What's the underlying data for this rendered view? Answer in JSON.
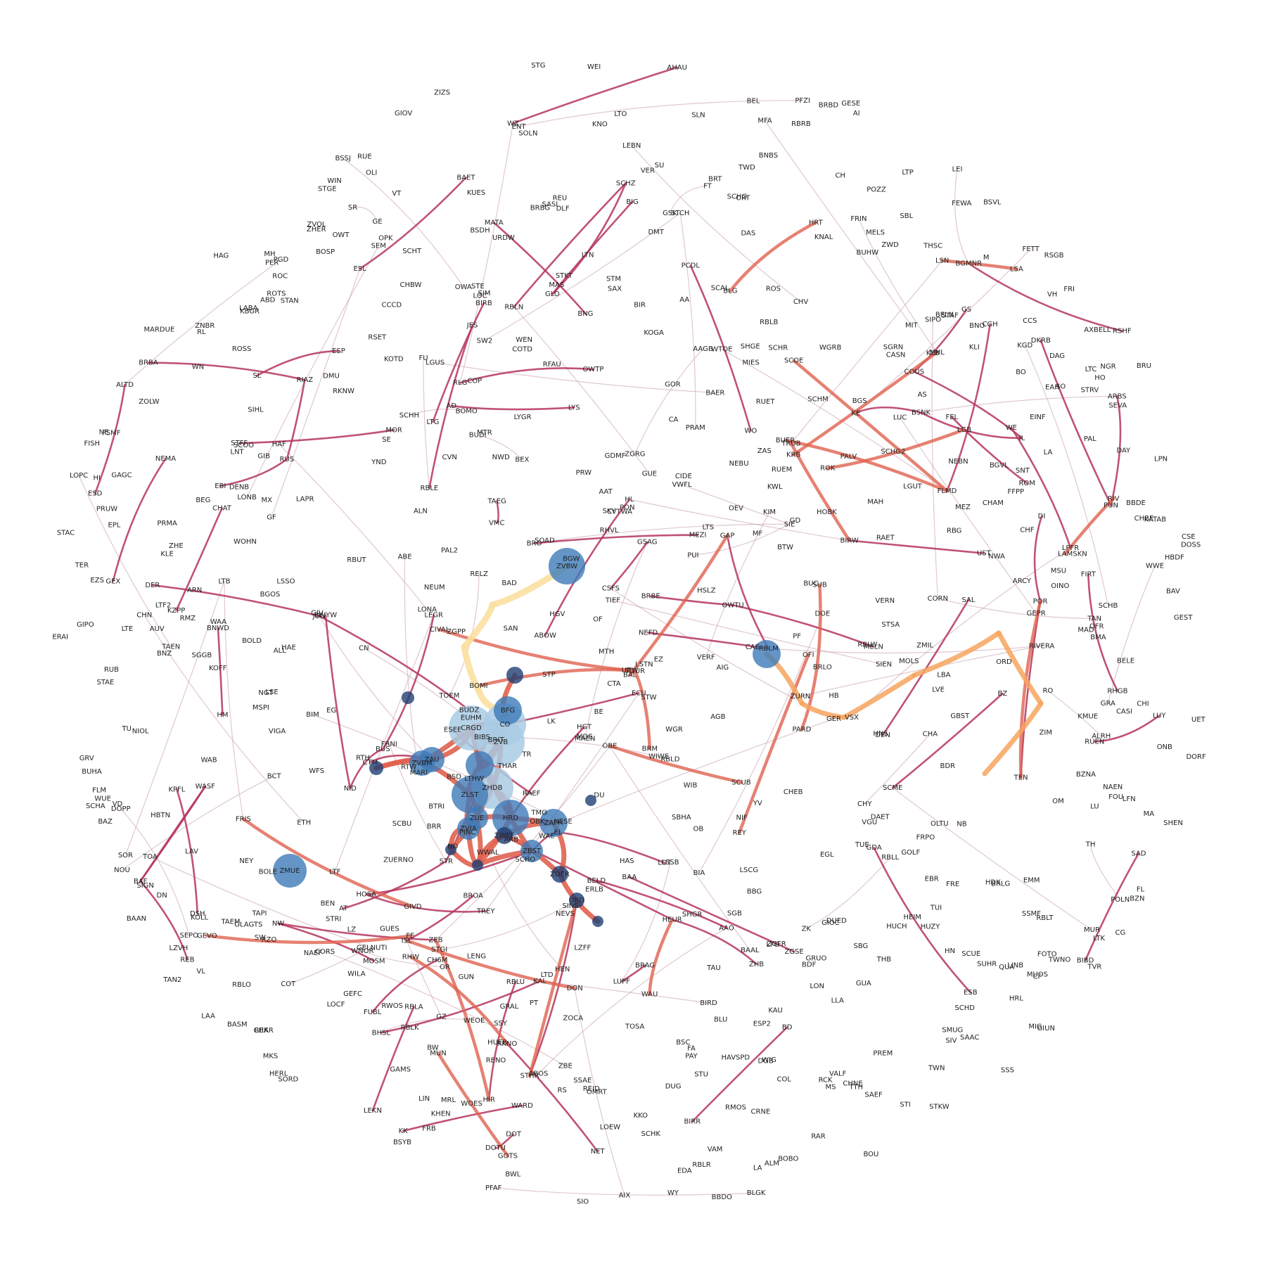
{
  "colors": {
    "edge_low": "#b5355c",
    "edge_mid": "#e0624f",
    "edge_high": "#f7a45e",
    "edge_top": "#fbe0a0",
    "node_dark": "#1f3f73",
    "node_mid": "#3d7ab8",
    "node_light": "#a9cbe4",
    "thin_edge": "#c79aa8"
  },
  "labels": [
    "FFPP",
    "LAPR",
    "SL",
    "SIO",
    "LTF",
    "GRAL",
    "PRAM",
    "GEFC",
    "RTW",
    "HB",
    "TAEN",
    "NWD",
    "CHF",
    "LTC",
    "LEI",
    "LIN",
    "RUET",
    "RBLT",
    "CTM",
    "BTW",
    "SAX",
    "RBLA",
    "NW",
    "LTHW",
    "LINB",
    "BAF",
    "LABA",
    "ABD",
    "FRB",
    "PF",
    "TOA",
    "POLN",
    "NET",
    "HRT",
    "SIE",
    "RL",
    "CG",
    "HAF",
    "CHA",
    "OWTP",
    "ALTD",
    "POR",
    "BRBD",
    "DGB",
    "RBLK",
    "WY",
    "SAL",
    "STR",
    "CHAR",
    "CGH",
    "LTG",
    "RBLL",
    "STAN",
    "CCS",
    "CN",
    "SCHO",
    "JON",
    "BIA",
    "GE",
    "LA",
    "RBRB",
    "SU",
    "WAE",
    "LENG",
    "GEVO",
    "LAA",
    "BAA",
    "BAAN",
    "MIT",
    "BO",
    "GRA",
    "KHEN",
    "KAU",
    "BOBO",
    "BROA",
    "EZS",
    "GAMS",
    "SIHL",
    "M",
    "NAEF",
    "JES",
    "BGVL",
    "LU",
    "BDF",
    "ARN",
    "SEVA",
    "KRB",
    "STGE",
    "EZ",
    "MA",
    "TU",
    "HAS",
    "PAY",
    "OFR",
    "WILA",
    "EDA",
    "LTB",
    "LTO",
    "SCHD",
    "BAAL",
    "LOT",
    "RFAU",
    "LK",
    "BRLO",
    "AHAU",
    "BUHW",
    "SW",
    "TR",
    "STHR",
    "STW",
    "TTH",
    "STRI",
    "SCBU",
    "SIM",
    "ZGSE",
    "KMUE",
    "LYS",
    "RBLD",
    "SCHH",
    "SEPO",
    "RMZ",
    "DI",
    "OFI",
    "STE",
    "ENT",
    "MOR",
    "BNG",
    "LUPF",
    "HOBK",
    "BEG",
    "BLU",
    "BWL",
    "GIOC",
    "LGB",
    "BZN",
    "TAEM",
    "SOLN",
    "RAR",
    "UZW",
    "FRE",
    "WFS",
    "PRUW",
    "FISH",
    "SBG",
    "ONB",
    "BIRD",
    "BRR",
    "KOLL",
    "SAAC",
    "BOMO",
    "GLO",
    "BUDZ",
    "BOLD",
    "GESE",
    "KNO",
    "FUBL",
    "LON",
    "STP",
    "BSNK",
    "BIRR",
    "NOU",
    "MS",
    "CA",
    "SE",
    "LLA",
    "ZGPP",
    "SIPO",
    "BUDI",
    "CH",
    "BGS",
    "DOT",
    "DOTU",
    "YND",
    "TVR",
    "MARI",
    "PRW",
    "BGW",
    "REY",
    "OF",
    "TREY",
    "FRIS",
    "RUB",
    "BRBA",
    "HDK",
    "BMA",
    "NID",
    "RBLE",
    "BRO",
    "VERN",
    "CTA",
    "WIB",
    "SIEN",
    "EAH",
    "GAP",
    "ZIZS",
    "DOPP",
    "BUC",
    "SCME",
    "BSYB",
    "BW",
    "BIRB",
    "BCT",
    "RBLM",
    "CHEB",
    "ORD",
    "RELZ",
    "CHY",
    "OWTU",
    "YV",
    "LONA",
    "CHNE",
    "STM",
    "RBUT",
    "FETT",
    "RWOS",
    "GEX",
    "THAR",
    "ZOCA",
    "TH",
    "WO",
    "THSC",
    "DLF",
    "STKT",
    "DSH",
    "BRBE",
    "SCHZ",
    "KOGA",
    "LSTN",
    "GUES",
    "BNO",
    "MUOS",
    "SSAE",
    "GUA",
    "SCOE",
    "SCOO",
    "AGB",
    "WOES",
    "GELNUTI",
    "GEST",
    "SHGR",
    "COUS",
    "TAEG",
    "EPL",
    "STRV",
    "RBLN",
    "LTE",
    "STKW",
    "LTS",
    "HBDF",
    "WIG",
    "BSC",
    "SSMF",
    "LSN",
    "HAVSPD",
    "BRBG",
    "OPK",
    "LONB",
    "GUE",
    "BGOS",
    "AIX",
    "WWAL",
    "BGMNR",
    "ALL",
    "BRLG",
    "AAO",
    "AAGB",
    "AA",
    "ZGRG",
    "REK",
    "BAZ",
    "WNOR",
    "LOC",
    "GF",
    "PCDL",
    "RIVERA",
    "EGL",
    "SBHA",
    "BSSJ",
    "ZGFR",
    "GOR",
    "DOSS",
    "AS",
    "FSMF",
    "POZZ",
    "KOFF",
    "BEN",
    "FT",
    "MEZ",
    "KOTD",
    "MEZI",
    "ISL",
    "DEN",
    "BD",
    "CASN",
    "TWNO",
    "AT",
    "MSU",
    "TUI",
    "BWYW",
    "ZVBW",
    "OWT",
    "FIRT",
    "CHAM",
    "PER",
    "NIOL",
    "BNBS",
    "TAN",
    "BOSP",
    "NWA",
    "STG",
    "ESEE",
    "BIRW",
    "HO",
    "BLGK",
    "SCHT",
    "MATA",
    "ALM",
    "BNWD",
    "DAS",
    "SKY",
    "TWD",
    "KLE",
    "WE",
    "MKS",
    "HSLZ",
    "BZNA",
    "ESP",
    "HUZY",
    "RMOS",
    "LAM",
    "LZVH",
    "BOLE",
    "MSPI",
    "BLG",
    "OWA",
    "RBLR",
    "HOSA",
    "LTP",
    "MELN",
    "SAD",
    "VIGA",
    "ERAI",
    "PFAF",
    "QUA",
    "HBTN",
    "LGUS",
    "TWN",
    "CVTWA",
    "OLTU",
    "CCCD",
    "TUE",
    "OINO",
    "FEL",
    "KNAL",
    "KPFL",
    "HM",
    "RUEM",
    "WTOE",
    "MF",
    "BIG",
    "CHV",
    "GBST",
    "GIOV",
    "GOTS",
    "BSDH",
    "RIV",
    "STSA",
    "HIR",
    "LAV",
    "CORS",
    "VWFL",
    "CSFS",
    "TMO",
    "FE",
    "GZ",
    "SAN",
    "GIPO",
    "LGUT",
    "BELN",
    "DENB",
    "WASF",
    "GRUO",
    "MTR",
    "ZWD",
    "BIM",
    "FRI",
    "MAH",
    "HUCH",
    "FRPO",
    "VGU",
    "DUED",
    "LZFF",
    "ALN",
    "LZ",
    "SEM",
    "NO",
    "RBG",
    "KATAB",
    "MUN",
    "CIDE",
    "SCHB",
    "ARBS",
    "ZVOL",
    "SCAL",
    "VMC",
    "SKN",
    "MAD",
    "MH",
    "LTD",
    "ROS",
    "WWE",
    "HEN",
    "BRAG",
    "KWL",
    "TOUR",
    "GLAGTS",
    "HEIM",
    "COTD",
    "WOHN",
    "CHI",
    "GIUN",
    "CF",
    "OMRT",
    "RUEN",
    "BELD",
    "LOEW",
    "BEL",
    "RHGB",
    "RHW",
    "ZOLW",
    "SGGB",
    "COL",
    "ZAU",
    "ZVBM",
    "CRGD",
    "ZHER",
    "BFG",
    "EINF",
    "CO",
    "FRNI",
    "ZVB",
    "ZAS",
    "WGR",
    "OLI",
    "ABOW",
    "BRU",
    "ZLST",
    "VSX",
    "ZHDB",
    "VH",
    "HRD",
    "ZAFH",
    "STU",
    "ZUE",
    "ZVIA",
    "ZWEF",
    "ZBST",
    "ZHB",
    "WEN",
    "ABOS",
    "ZOER",
    "URD",
    "MIG",
    "KZPP",
    "DAET",
    "HGV",
    "DOE",
    "BBDE",
    "BBDO",
    "STAE",
    "ARB",
    "ETH",
    "KLI",
    "SLN",
    "LSSB",
    "REB",
    "ZMUE",
    "RCK",
    "KBGR",
    "OM",
    "MAEN",
    "SHGE",
    "RBLW",
    "KIM",
    "STCH",
    "LFG",
    "LOCF",
    "VT",
    "THB",
    "RBLB",
    "SCUE",
    "STI",
    "SCHM",
    "HNS",
    "KAL",
    "HN",
    "BUHA",
    "KKO",
    "WARD",
    "BOMI",
    "BBG",
    "HL",
    "GAGC",
    "RSHF",
    "LA",
    "VAM",
    "RUS",
    "FEWA",
    "LPFR",
    "KK",
    "LYGR",
    "RSGB",
    "RHVL",
    "HERL",
    "ABE",
    "RBLO",
    "WIN",
    "RS",
    "EG",
    "PT",
    "GUN",
    "SNT",
    "LTK",
    "EL",
    "AD",
    "CASI",
    "DAY",
    "COP",
    "SIGN",
    "GD",
    "SO",
    "KUES",
    "ERLB",
    "OBE",
    "ESL",
    "BRT",
    "SW2",
    "OB",
    "GOLF",
    "RSET",
    "CHAT",
    "BZ",
    "DN",
    "PALV",
    "NB",
    "WAA",
    "SOAD",
    "ECU",
    "LBA",
    "OR",
    "KLB",
    "VD",
    "AXBELL",
    "VALF",
    "SIV",
    "ROC",
    "RO",
    "LUY",
    "PARD",
    "VER",
    "STGI",
    "CH6M",
    "BSVL",
    "PINC",
    "VERF",
    "LPN",
    "GEPR",
    "RBLU",
    "NEFD",
    "HI",
    "WEI",
    "NGR",
    "SINS",
    "BOU",
    "NEBN",
    "SSY",
    "RZO",
    "WZ",
    "ZURN",
    "RAEF",
    "PON",
    "BAER",
    "FA",
    "EBI",
    "NESE",
    "GIB",
    "FLMD",
    "WAU",
    "FU",
    "SOR",
    "GER",
    "ROTS",
    "BNZ",
    "AUV",
    "ZNBR",
    "LFN",
    "LTF2",
    "DKRB",
    "HUEB",
    "GSAG",
    "FLM",
    "WAB",
    "GIVD",
    "BAET",
    "ESB",
    "WUE",
    "OBK",
    "PGD",
    "LOPC",
    "SSS",
    "BDR",
    "EBR",
    "DUG",
    "GS",
    "ZMIL",
    "BIBD",
    "SMUG",
    "WGRB",
    "HEUR",
    "PREM",
    "REU",
    "RUE",
    "FOTO",
    "BE",
    "BIBS",
    "SCHA",
    "FRIN",
    "DMU",
    "BAV",
    "KE",
    "AI",
    "LVE",
    "BUER",
    "TAU",
    "FL",
    "WN",
    "DU",
    "ESP2",
    "GIV",
    "MTH",
    "CSE",
    "MAS",
    "LEGR",
    "WEOE",
    "LTN",
    "RKNO",
    "SGB",
    "MDE",
    "TOSA",
    "LUC",
    "TOEM",
    "ARCY",
    "GDMF",
    "ZHE",
    "RENO",
    "CAE",
    "SASL",
    "TAPI",
    "PFZI",
    "NEVS",
    "SORD",
    "NEBU",
    "BTRI",
    "TRUB",
    "SAEF",
    "LSE",
    "ESD",
    "AAT",
    "LSSO",
    "GSK",
    "NE",
    "IL",
    "MX",
    "HAG",
    "NAEN",
    "NEMA",
    "SCHR",
    "RKNW",
    "UST",
    "MUR",
    "ROK",
    "TER",
    "DAG",
    "LSA",
    "BELE",
    "NEY",
    "VL",
    "AIG",
    "ROM",
    "LEKN",
    "DORF",
    "REID",
    "BSD",
    "PAL",
    "FOU",
    "CHBE",
    "CHBW",
    "SBL",
    "TEN",
    "CIVAL",
    "BAD",
    "PRMA",
    "MRL",
    "LSCG",
    "NEUM",
    "ZEB",
    "ZBE",
    "PUN",
    "SCHG",
    "BRIT",
    "MARDUE",
    "COT",
    "BEX",
    "DMT",
    "PUI",
    "ZUERNO",
    "EUHM",
    "LEBN",
    "MELS",
    "TIEF",
    "DON",
    "BRM",
    "BHSL",
    "GRV",
    "MOLS",
    "LNT",
    "STFF",
    "MIES",
    "CORN",
    "SUHR",
    "GDA",
    "ROSS",
    "BUS",
    "URDW",
    "RTH",
    "TAN2",
    "CVN",
    "PAL2",
    "HAE",
    "RIAZ",
    "CRNE",
    "MFA",
    "ZIM",
    "RAET",
    "SUB",
    "CHN",
    "MOSM",
    "RLG",
    "DER",
    "SGRN",
    "ORT",
    "ZK",
    "SR",
    "WIWE",
    "NGT",
    "HGT",
    "STAC",
    "MHL",
    "NIF",
    "ALRH",
    "SCHG2",
    "STAF",
    "UET",
    "EMM",
    "SHEN",
    "KGD",
    "BASM",
    "HRL",
    "BAL",
    "OEV",
    "SCUB",
    "SCHK",
    "BIR"
  ]
}
